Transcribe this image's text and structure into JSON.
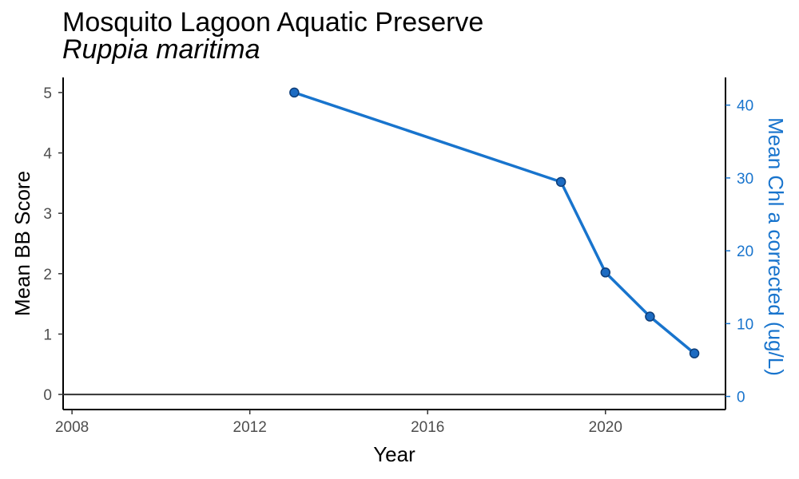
{
  "chart_data": {
    "type": "line",
    "title": "Mosquito Lagoon Aquatic Preserve",
    "subtitle": "Ruppia maritima",
    "xlabel": "Year",
    "ylabel": "Mean BB Score",
    "y2label": "Mean Chl a corrected (ug/L)",
    "xlim": [
      2007.8,
      2022.7
    ],
    "ylim": [
      -0.25,
      5.25
    ],
    "y2lim": [
      -1.8,
      43.8
    ],
    "x_ticks": [
      2008,
      2012,
      2016,
      2020
    ],
    "y_ticks": [
      0,
      1,
      2,
      3,
      4,
      5
    ],
    "y2_ticks": [
      0,
      10,
      20,
      30,
      40
    ],
    "grid": false,
    "reference_line": {
      "y": 0
    },
    "series": [
      {
        "axis": "left",
        "color": "#1874CD",
        "point_fill": "#1C6BC2",
        "point_stroke": "#0D3D78",
        "x": [
          2013,
          2019,
          2020,
          2021,
          2022
        ],
        "y": [
          5.0,
          3.52,
          2.02,
          1.29,
          0.68
        ]
      }
    ]
  }
}
